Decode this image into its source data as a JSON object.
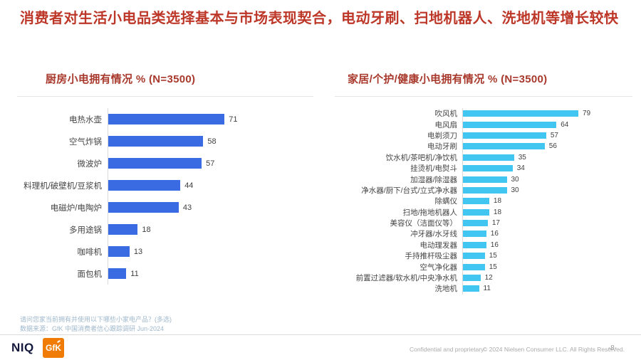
{
  "slide": {
    "title": "消费者对生活小电品类选择基本与市场表现契合，电动牙刷、扫地机器人、洗地机等增长较快",
    "footnote": {
      "question": "请问您家当前拥有并使用以下哪些小家电产品？(多选)",
      "source": "数据来源：GfK 中国消费者信心跟踪调研 Jun-2024"
    },
    "footer": {
      "logo_niq": "NIQ",
      "logo_gfk": "GfK",
      "confidential": "Confidential and proprietary",
      "copyright": "© 2024 Nielsen Consumer LLC. All Rights Reserved.",
      "page": "-8-"
    },
    "colors": {
      "title_red": "#bd3728",
      "chart_title_red": "#a8392c",
      "footnote_blue": "#9fb8cc",
      "kitchen_bar_blue": "#3a6be2",
      "home_bar_cyan": "#40c6f0",
      "gfk_orange": "#f07b05",
      "niq_navy": "#14183c"
    }
  },
  "chart_data": [
    {
      "type": "bar",
      "orientation": "horizontal",
      "title": "厨房小电拥有情况 % (N=3500)",
      "categories": [
        "电热水壶",
        "空气炸锅",
        "微波炉",
        "料理机/破壁机/豆浆机",
        "电磁炉/电陶炉",
        "多用途锅",
        "咖啡机",
        "面包机"
      ],
      "values": [
        71,
        58,
        57,
        44,
        43,
        18,
        13,
        11
      ],
      "bar_color": "#3a6be2",
      "xlim": [
        0,
        100
      ],
      "grid": false,
      "value_labels": true
    },
    {
      "type": "bar",
      "orientation": "horizontal",
      "title": "家居/个护/健康小电拥有情况 % (N=3500)",
      "categories": [
        "吹风机",
        "电风扇",
        "电剃须刀",
        "电动牙刷",
        "饮水机/茶吧机/净饮机",
        "挂烫机/电熨斗",
        "加湿器/除湿器",
        "净水器/厨下/台式/立式净水器",
        "除螨仪",
        "扫地/拖地机器人",
        "美容仪（洁面仪等）",
        "冲牙器/水牙线",
        "电动理发器",
        "手持推杆吸尘器",
        "空气净化器",
        "前置过滤器/软水机/中央净水机",
        "洗地机"
      ],
      "values": [
        79,
        64,
        57,
        56,
        35,
        34,
        30,
        30,
        18,
        18,
        17,
        16,
        16,
        15,
        15,
        12,
        11
      ],
      "bar_color": "#40c6f0",
      "xlim": [
        0,
        100
      ],
      "grid": false,
      "value_labels": true
    }
  ]
}
